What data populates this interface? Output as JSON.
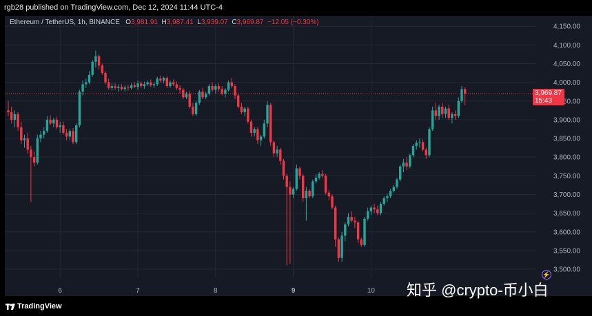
{
  "header": {
    "published_text": "rgb28 published on TradingView.com, Dec 12, 2024 11:44 UTC-4"
  },
  "legend": {
    "symbol": "Ethereum / TetherUS, 1h, BINANCE",
    "o_label": "O",
    "o_value": "3,981.91",
    "h_label": "H",
    "h_value": "3,987.41",
    "l_label": "L",
    "l_value": "3,939.07",
    "c_label": "C",
    "c_value": "3,969.87",
    "change": "−12.05 (−0.30%)"
  },
  "price_tag": {
    "price": "3,969.87",
    "countdown": "15:43"
  },
  "footer": {
    "brand": "TradingView"
  },
  "watermark": "知乎 @crypto-币小白",
  "colors": {
    "up": "#26a69a",
    "down": "#f23645",
    "background": "#161a25",
    "grid": "#232837",
    "text": "#b2b5be"
  },
  "chart_data": {
    "type": "candlestick",
    "interval": "1h",
    "current_price": 3969.87,
    "y_ticks": [
      3500,
      3550,
      3600,
      3650,
      3700,
      3750,
      3800,
      3850,
      3900,
      3950,
      4000,
      4050,
      4100,
      4150
    ],
    "y_tick_labels": [
      "3,500.00",
      "3,550.00",
      "3,600.00",
      "3,650.00",
      "3,700.00",
      "3,750.00",
      "3,800.00",
      "3,850.00",
      "3,900.00",
      "3,950.00",
      "4,000.00",
      "4,050.00",
      "4,100.00",
      "4,150.00"
    ],
    "ylim": [
      3478,
      4178
    ],
    "x_ticks": [
      {
        "label": "6",
        "index": 16,
        "bold": false
      },
      {
        "label": "7",
        "index": 40,
        "bold": false
      },
      {
        "label": "8",
        "index": 64,
        "bold": false
      },
      {
        "label": "9",
        "index": 88,
        "bold": true
      },
      {
        "label": "10",
        "index": 112,
        "bold": false
      }
    ],
    "candles": [
      {
        "o": 3925,
        "h": 3950,
        "l": 3910,
        "c": 3920
      },
      {
        "o": 3920,
        "h": 3935,
        "l": 3890,
        "c": 3900
      },
      {
        "o": 3900,
        "h": 3925,
        "l": 3880,
        "c": 3915
      },
      {
        "o": 3915,
        "h": 3920,
        "l": 3870,
        "c": 3880
      },
      {
        "o": 3880,
        "h": 3895,
        "l": 3835,
        "c": 3845
      },
      {
        "o": 3845,
        "h": 3860,
        "l": 3825,
        "c": 3850
      },
      {
        "o": 3850,
        "h": 3865,
        "l": 3810,
        "c": 3820
      },
      {
        "o": 3820,
        "h": 3830,
        "l": 3680,
        "c": 3800
      },
      {
        "o": 3800,
        "h": 3815,
        "l": 3775,
        "c": 3785
      },
      {
        "o": 3785,
        "h": 3860,
        "l": 3780,
        "c": 3850
      },
      {
        "o": 3850,
        "h": 3870,
        "l": 3840,
        "c": 3860
      },
      {
        "o": 3860,
        "h": 3880,
        "l": 3850,
        "c": 3870
      },
      {
        "o": 3870,
        "h": 3910,
        "l": 3865,
        "c": 3900
      },
      {
        "o": 3900,
        "h": 3912,
        "l": 3885,
        "c": 3890
      },
      {
        "o": 3890,
        "h": 3905,
        "l": 3880,
        "c": 3900
      },
      {
        "o": 3900,
        "h": 3908,
        "l": 3875,
        "c": 3880
      },
      {
        "o": 3880,
        "h": 3895,
        "l": 3865,
        "c": 3885
      },
      {
        "o": 3885,
        "h": 3895,
        "l": 3860,
        "c": 3865
      },
      {
        "o": 3865,
        "h": 3875,
        "l": 3845,
        "c": 3855
      },
      {
        "o": 3855,
        "h": 3875,
        "l": 3845,
        "c": 3870
      },
      {
        "o": 3870,
        "h": 3878,
        "l": 3835,
        "c": 3840
      },
      {
        "o": 3840,
        "h": 3890,
        "l": 3835,
        "c": 3885
      },
      {
        "o": 3885,
        "h": 3980,
        "l": 3880,
        "c": 3975
      },
      {
        "o": 3975,
        "h": 4005,
        "l": 3965,
        "c": 3995
      },
      {
        "o": 3995,
        "h": 4010,
        "l": 3985,
        "c": 4000
      },
      {
        "o": 4000,
        "h": 4030,
        "l": 3995,
        "c": 4020
      },
      {
        "o": 4020,
        "h": 4060,
        "l": 4015,
        "c": 4055
      },
      {
        "o": 4055,
        "h": 4085,
        "l": 4040,
        "c": 4070
      },
      {
        "o": 4070,
        "h": 4075,
        "l": 4035,
        "c": 4045
      },
      {
        "o": 4045,
        "h": 4050,
        "l": 4020,
        "c": 4025
      },
      {
        "o": 4025,
        "h": 4030,
        "l": 3995,
        "c": 4000
      },
      {
        "o": 4000,
        "h": 4010,
        "l": 3980,
        "c": 3985
      },
      {
        "o": 3985,
        "h": 3998,
        "l": 3978,
        "c": 3990
      },
      {
        "o": 3990,
        "h": 3998,
        "l": 3980,
        "c": 3985
      },
      {
        "o": 3985,
        "h": 3995,
        "l": 3975,
        "c": 3988
      },
      {
        "o": 3988,
        "h": 3995,
        "l": 3978,
        "c": 3982
      },
      {
        "o": 3982,
        "h": 3992,
        "l": 3975,
        "c": 3986
      },
      {
        "o": 3986,
        "h": 3994,
        "l": 3978,
        "c": 3985
      },
      {
        "o": 3985,
        "h": 3998,
        "l": 3980,
        "c": 3992
      },
      {
        "o": 3992,
        "h": 4000,
        "l": 3985,
        "c": 3988
      },
      {
        "o": 3988,
        "h": 4005,
        "l": 3980,
        "c": 3997
      },
      {
        "o": 3997,
        "h": 4003,
        "l": 3985,
        "c": 3990
      },
      {
        "o": 3990,
        "h": 4002,
        "l": 3983,
        "c": 3995
      },
      {
        "o": 3995,
        "h": 4005,
        "l": 3990,
        "c": 4000
      },
      {
        "o": 4000,
        "h": 4008,
        "l": 3988,
        "c": 3992
      },
      {
        "o": 3992,
        "h": 4000,
        "l": 3985,
        "c": 3995
      },
      {
        "o": 3995,
        "h": 4015,
        "l": 3990,
        "c": 4010
      },
      {
        "o": 4010,
        "h": 4018,
        "l": 4000,
        "c": 4005
      },
      {
        "o": 4005,
        "h": 4015,
        "l": 3998,
        "c": 4012
      },
      {
        "o": 4012,
        "h": 4016,
        "l": 3985,
        "c": 3990
      },
      {
        "o": 3990,
        "h": 4005,
        "l": 3985,
        "c": 4000
      },
      {
        "o": 4000,
        "h": 4008,
        "l": 3990,
        "c": 3995
      },
      {
        "o": 3995,
        "h": 4002,
        "l": 3980,
        "c": 3985
      },
      {
        "o": 3985,
        "h": 3992,
        "l": 3970,
        "c": 3980
      },
      {
        "o": 3980,
        "h": 3985,
        "l": 3955,
        "c": 3960
      },
      {
        "o": 3960,
        "h": 3975,
        "l": 3955,
        "c": 3970
      },
      {
        "o": 3970,
        "h": 3978,
        "l": 3930,
        "c": 3935
      },
      {
        "o": 3935,
        "h": 3945,
        "l": 3910,
        "c": 3915
      },
      {
        "o": 3915,
        "h": 3950,
        "l": 3910,
        "c": 3945
      },
      {
        "o": 3945,
        "h": 3980,
        "l": 3940,
        "c": 3975
      },
      {
        "o": 3975,
        "h": 3985,
        "l": 3955,
        "c": 3960
      },
      {
        "o": 3960,
        "h": 3975,
        "l": 3955,
        "c": 3970
      },
      {
        "o": 3970,
        "h": 3995,
        "l": 3965,
        "c": 3990
      },
      {
        "o": 3990,
        "h": 4000,
        "l": 3975,
        "c": 3980
      },
      {
        "o": 3980,
        "h": 3995,
        "l": 3970,
        "c": 3990
      },
      {
        "o": 3990,
        "h": 3998,
        "l": 3975,
        "c": 3982
      },
      {
        "o": 3982,
        "h": 3990,
        "l": 3965,
        "c": 3970
      },
      {
        "o": 3970,
        "h": 3985,
        "l": 3960,
        "c": 3980
      },
      {
        "o": 3980,
        "h": 4005,
        "l": 3975,
        "c": 4000
      },
      {
        "o": 4000,
        "h": 4012,
        "l": 3985,
        "c": 3990
      },
      {
        "o": 3990,
        "h": 3995,
        "l": 3955,
        "c": 3965
      },
      {
        "o": 3965,
        "h": 3970,
        "l": 3930,
        "c": 3935
      },
      {
        "o": 3935,
        "h": 3945,
        "l": 3915,
        "c": 3920
      },
      {
        "o": 3920,
        "h": 3935,
        "l": 3910,
        "c": 3930
      },
      {
        "o": 3930,
        "h": 3935,
        "l": 3890,
        "c": 3895
      },
      {
        "o": 3895,
        "h": 3900,
        "l": 3855,
        "c": 3865
      },
      {
        "o": 3865,
        "h": 3880,
        "l": 3855,
        "c": 3875
      },
      {
        "o": 3875,
        "h": 3880,
        "l": 3835,
        "c": 3845
      },
      {
        "o": 3845,
        "h": 3860,
        "l": 3830,
        "c": 3855
      },
      {
        "o": 3855,
        "h": 3900,
        "l": 3850,
        "c": 3890
      },
      {
        "o": 3890,
        "h": 3950,
        "l": 3880,
        "c": 3940
      },
      {
        "o": 3940,
        "h": 3945,
        "l": 3830,
        "c": 3840
      },
      {
        "o": 3840,
        "h": 3845,
        "l": 3800,
        "c": 3810
      },
      {
        "o": 3810,
        "h": 3830,
        "l": 3800,
        "c": 3820
      },
      {
        "o": 3820,
        "h": 3825,
        "l": 3780,
        "c": 3790
      },
      {
        "o": 3790,
        "h": 3795,
        "l": 3740,
        "c": 3750
      },
      {
        "o": 3750,
        "h": 3755,
        "l": 3510,
        "c": 3720
      },
      {
        "o": 3720,
        "h": 3735,
        "l": 3515,
        "c": 3700
      },
      {
        "o": 3700,
        "h": 3720,
        "l": 3690,
        "c": 3715
      },
      {
        "o": 3715,
        "h": 3780,
        "l": 3710,
        "c": 3770
      },
      {
        "o": 3770,
        "h": 3775,
        "l": 3740,
        "c": 3750
      },
      {
        "o": 3750,
        "h": 3755,
        "l": 3680,
        "c": 3690
      },
      {
        "o": 3690,
        "h": 3720,
        "l": 3630,
        "c": 3710
      },
      {
        "o": 3710,
        "h": 3715,
        "l": 3690,
        "c": 3695
      },
      {
        "o": 3695,
        "h": 3740,
        "l": 3690,
        "c": 3735
      },
      {
        "o": 3735,
        "h": 3755,
        "l": 3730,
        "c": 3745
      },
      {
        "o": 3745,
        "h": 3760,
        "l": 3740,
        "c": 3755
      },
      {
        "o": 3755,
        "h": 3765,
        "l": 3745,
        "c": 3750
      },
      {
        "o": 3750,
        "h": 3755,
        "l": 3700,
        "c": 3705
      },
      {
        "o": 3705,
        "h": 3712,
        "l": 3685,
        "c": 3695
      },
      {
        "o": 3695,
        "h": 3700,
        "l": 3660,
        "c": 3665
      },
      {
        "o": 3665,
        "h": 3670,
        "l": 3560,
        "c": 3580
      },
      {
        "o": 3580,
        "h": 3585,
        "l": 3520,
        "c": 3530
      },
      {
        "o": 3530,
        "h": 3600,
        "l": 3520,
        "c": 3590
      },
      {
        "o": 3590,
        "h": 3625,
        "l": 3575,
        "c": 3620
      },
      {
        "o": 3620,
        "h": 3650,
        "l": 3615,
        "c": 3640
      },
      {
        "o": 3640,
        "h": 3655,
        "l": 3625,
        "c": 3630
      },
      {
        "o": 3630,
        "h": 3640,
        "l": 3610,
        "c": 3625
      },
      {
        "o": 3625,
        "h": 3630,
        "l": 3570,
        "c": 3580
      },
      {
        "o": 3580,
        "h": 3585,
        "l": 3560,
        "c": 3565
      },
      {
        "o": 3565,
        "h": 3640,
        "l": 3560,
        "c": 3635
      },
      {
        "o": 3635,
        "h": 3665,
        "l": 3630,
        "c": 3655
      },
      {
        "o": 3655,
        "h": 3670,
        "l": 3645,
        "c": 3665
      },
      {
        "o": 3665,
        "h": 3675,
        "l": 3650,
        "c": 3660
      },
      {
        "o": 3660,
        "h": 3670,
        "l": 3645,
        "c": 3650
      },
      {
        "o": 3650,
        "h": 3680,
        "l": 3645,
        "c": 3675
      },
      {
        "o": 3675,
        "h": 3695,
        "l": 3670,
        "c": 3690
      },
      {
        "o": 3690,
        "h": 3702,
        "l": 3680,
        "c": 3695
      },
      {
        "o": 3695,
        "h": 3715,
        "l": 3690,
        "c": 3710
      },
      {
        "o": 3710,
        "h": 3725,
        "l": 3705,
        "c": 3720
      },
      {
        "o": 3720,
        "h": 3745,
        "l": 3715,
        "c": 3740
      },
      {
        "o": 3740,
        "h": 3780,
        "l": 3735,
        "c": 3775
      },
      {
        "o": 3775,
        "h": 3795,
        "l": 3760,
        "c": 3785
      },
      {
        "o": 3785,
        "h": 3800,
        "l": 3765,
        "c": 3775
      },
      {
        "o": 3775,
        "h": 3810,
        "l": 3770,
        "c": 3805
      },
      {
        "o": 3805,
        "h": 3835,
        "l": 3800,
        "c": 3830
      },
      {
        "o": 3830,
        "h": 3845,
        "l": 3820,
        "c": 3838
      },
      {
        "o": 3838,
        "h": 3850,
        "l": 3825,
        "c": 3840
      },
      {
        "o": 3840,
        "h": 3848,
        "l": 3815,
        "c": 3820
      },
      {
        "o": 3820,
        "h": 3825,
        "l": 3795,
        "c": 3805
      },
      {
        "o": 3805,
        "h": 3880,
        "l": 3800,
        "c": 3875
      },
      {
        "o": 3875,
        "h": 3935,
        "l": 3870,
        "c": 3925
      },
      {
        "o": 3925,
        "h": 3945,
        "l": 3900,
        "c": 3910
      },
      {
        "o": 3910,
        "h": 3940,
        "l": 3900,
        "c": 3935
      },
      {
        "o": 3935,
        "h": 3945,
        "l": 3905,
        "c": 3915
      },
      {
        "o": 3915,
        "h": 3935,
        "l": 3905,
        "c": 3930
      },
      {
        "o": 3930,
        "h": 3940,
        "l": 3900,
        "c": 3905
      },
      {
        "o": 3905,
        "h": 3920,
        "l": 3890,
        "c": 3915
      },
      {
        "o": 3915,
        "h": 3925,
        "l": 3900,
        "c": 3910
      },
      {
        "o": 3910,
        "h": 3960,
        "l": 3905,
        "c": 3950
      },
      {
        "o": 3950,
        "h": 3990,
        "l": 3945,
        "c": 3982
      },
      {
        "o": 3982,
        "h": 3987,
        "l": 3939,
        "c": 3970
      }
    ]
  }
}
